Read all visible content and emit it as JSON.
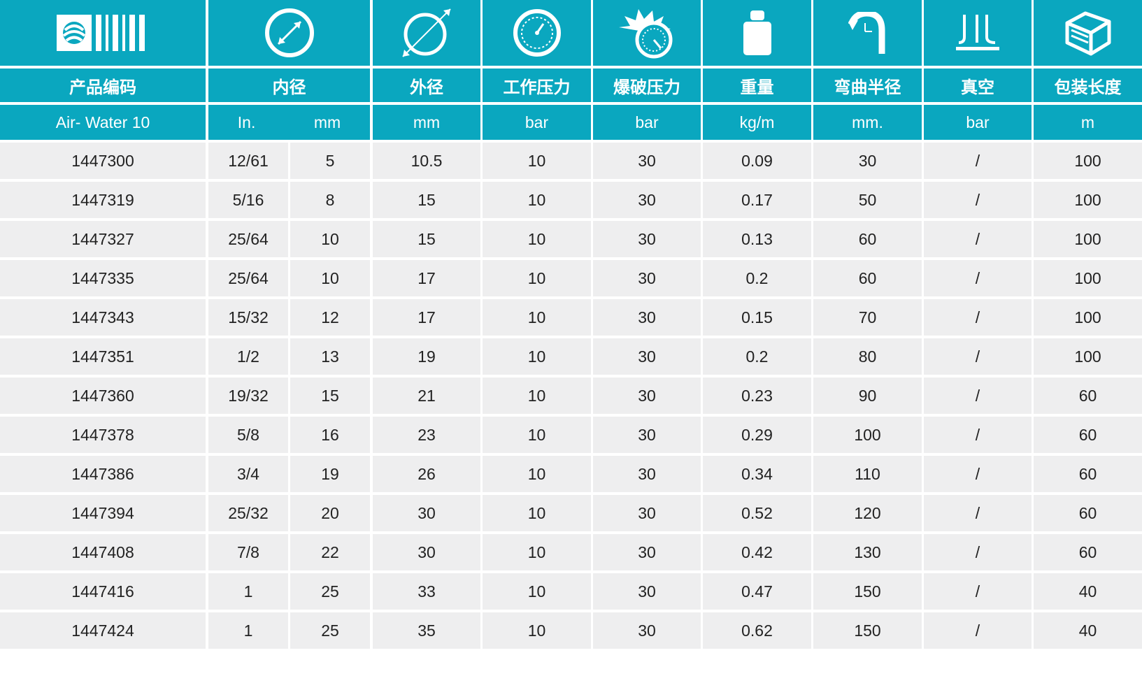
{
  "headers": [
    {
      "title": "产品编码",
      "unit": "Air- Water 10",
      "icon": "brand-logo-icon"
    },
    {
      "title": "内径",
      "unit_in": "In.",
      "unit_mm": "mm",
      "icon": "inner-diameter-icon"
    },
    {
      "title": "外径",
      "unit": "mm",
      "icon": "outer-diameter-icon"
    },
    {
      "title": "工作压力",
      "unit": "bar",
      "icon": "pressure-gauge-icon"
    },
    {
      "title": "爆破压力",
      "unit": "bar",
      "icon": "burst-pressure-icon"
    },
    {
      "title": "重量",
      "unit": "kg/m",
      "icon": "weight-icon"
    },
    {
      "title": "弯曲半径",
      "unit": "mm.",
      "icon": "bend-radius-icon"
    },
    {
      "title": "真空",
      "unit": "bar",
      "icon": "vacuum-icon"
    },
    {
      "title": "包装长度",
      "unit": "m",
      "icon": "package-icon"
    }
  ],
  "rows": [
    [
      "1447300",
      "12/61",
      "5",
      "10.5",
      "10",
      "30",
      "0.09",
      "30",
      "/",
      "100"
    ],
    [
      "1447319",
      "5/16",
      "8",
      "15",
      "10",
      "30",
      "0.17",
      "50",
      "/",
      "100"
    ],
    [
      "1447327",
      "25/64",
      "10",
      "15",
      "10",
      "30",
      "0.13",
      "60",
      "/",
      "100"
    ],
    [
      "1447335",
      "25/64",
      "10",
      "17",
      "10",
      "30",
      "0.2",
      "60",
      "/",
      "100"
    ],
    [
      "1447343",
      "15/32",
      "12",
      "17",
      "10",
      "30",
      "0.15",
      "70",
      "/",
      "100"
    ],
    [
      "1447351",
      "1/2",
      "13",
      "19",
      "10",
      "30",
      "0.2",
      "80",
      "/",
      "100"
    ],
    [
      "1447360",
      "19/32",
      "15",
      "21",
      "10",
      "30",
      "0.23",
      "90",
      "/",
      "60"
    ],
    [
      "1447378",
      "5/8",
      "16",
      "23",
      "10",
      "30",
      "0.29",
      "100",
      "/",
      "60"
    ],
    [
      "1447386",
      "3/4",
      "19",
      "26",
      "10",
      "30",
      "0.34",
      "110",
      "/",
      "60"
    ],
    [
      "1447394",
      "25/32",
      "20",
      "30",
      "10",
      "30",
      "0.52",
      "120",
      "/",
      "60"
    ],
    [
      "1447408",
      "7/8",
      "22",
      "30",
      "10",
      "30",
      "0.42",
      "130",
      "/",
      "60"
    ],
    [
      "1447416",
      "1",
      "25",
      "33",
      "10",
      "30",
      "0.47",
      "150",
      "/",
      "40"
    ],
    [
      "1447424",
      "1",
      "25",
      "35",
      "10",
      "30",
      "0.62",
      "150",
      "/",
      "40"
    ]
  ],
  "colors": {
    "header_bg": "#0aa7bf",
    "row_bg": "#eeeeef",
    "text": "#222222"
  }
}
